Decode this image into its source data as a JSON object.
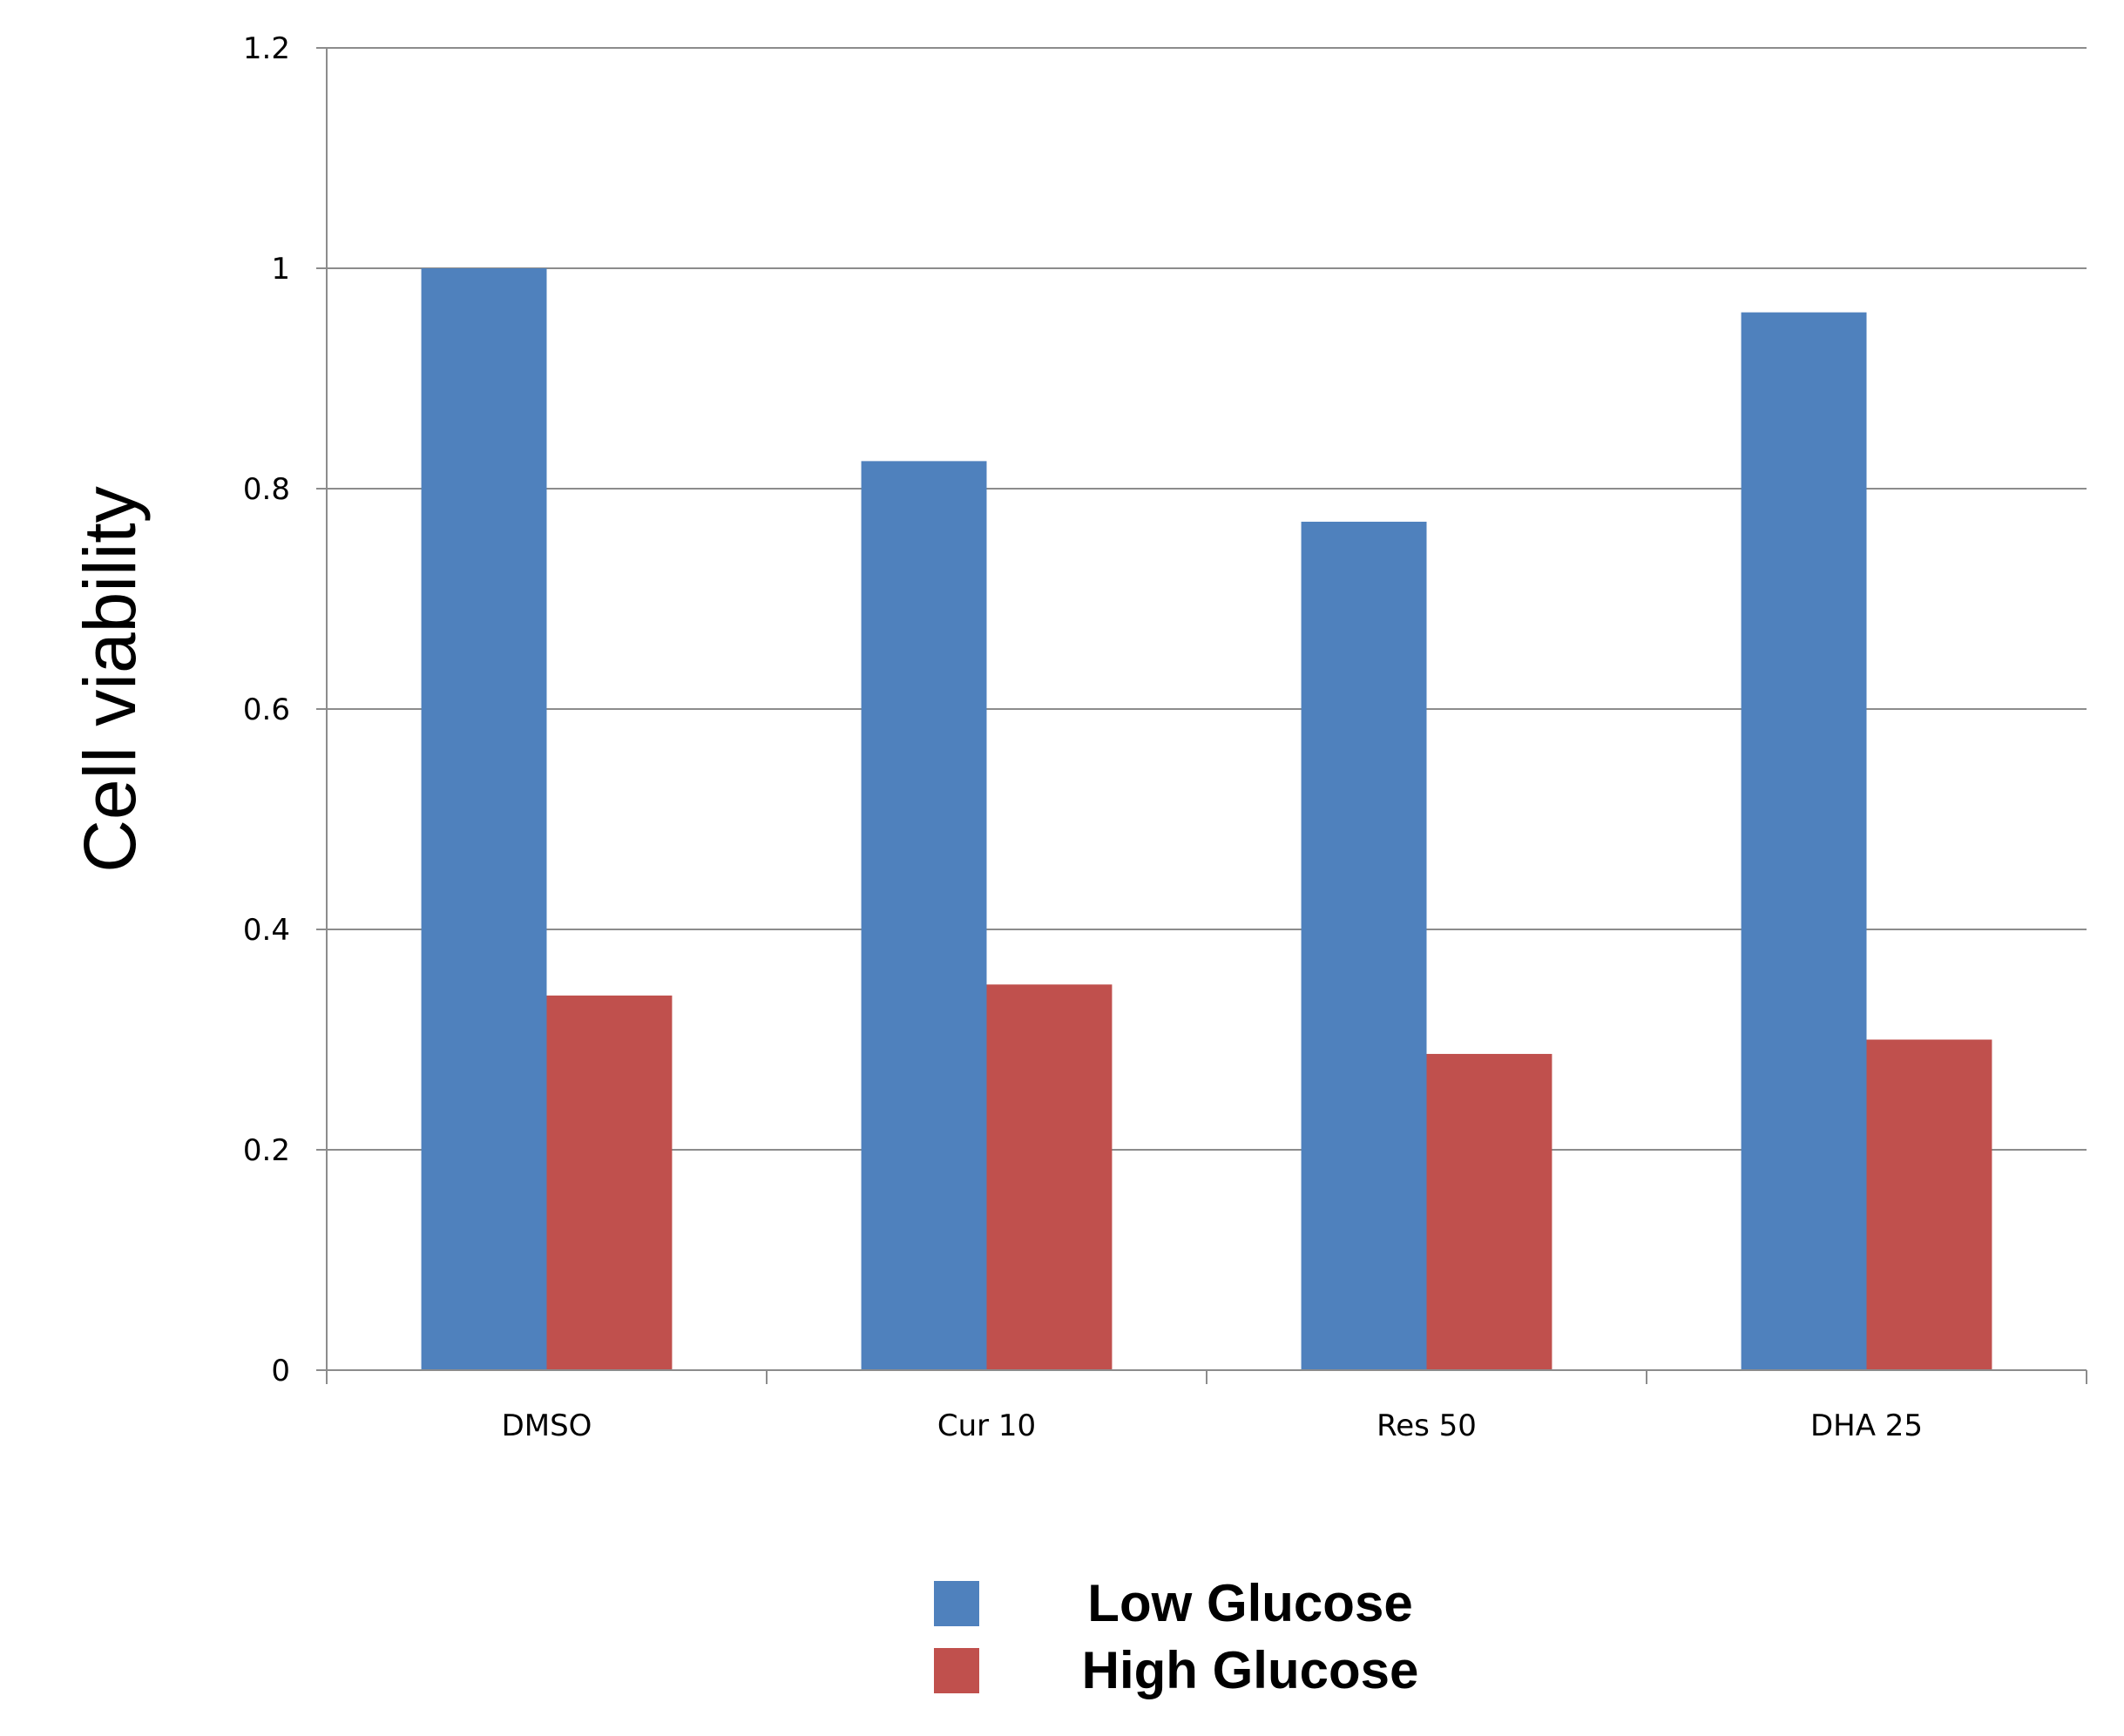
{
  "chart_data": {
    "type": "bar",
    "categories": [
      "DMSO",
      "Cur 10",
      "Res 50",
      "DHA 25"
    ],
    "series": [
      {
        "name": "Low Glucose",
        "values": [
          1.0,
          0.825,
          0.77,
          0.96
        ],
        "color": "#4F81BD"
      },
      {
        "name": "High Glucose",
        "values": [
          0.34,
          0.35,
          0.287,
          0.3
        ],
        "color": "#C0504D"
      }
    ],
    "title": "",
    "xlabel": "",
    "ylabel": "Cell viability",
    "ylim": [
      0,
      1.2
    ],
    "yticks": [
      "0",
      "0.2",
      "0.4",
      "0.6",
      "0.8",
      "1",
      "1.2"
    ],
    "grid": true,
    "legend_position": "bottom-center"
  }
}
